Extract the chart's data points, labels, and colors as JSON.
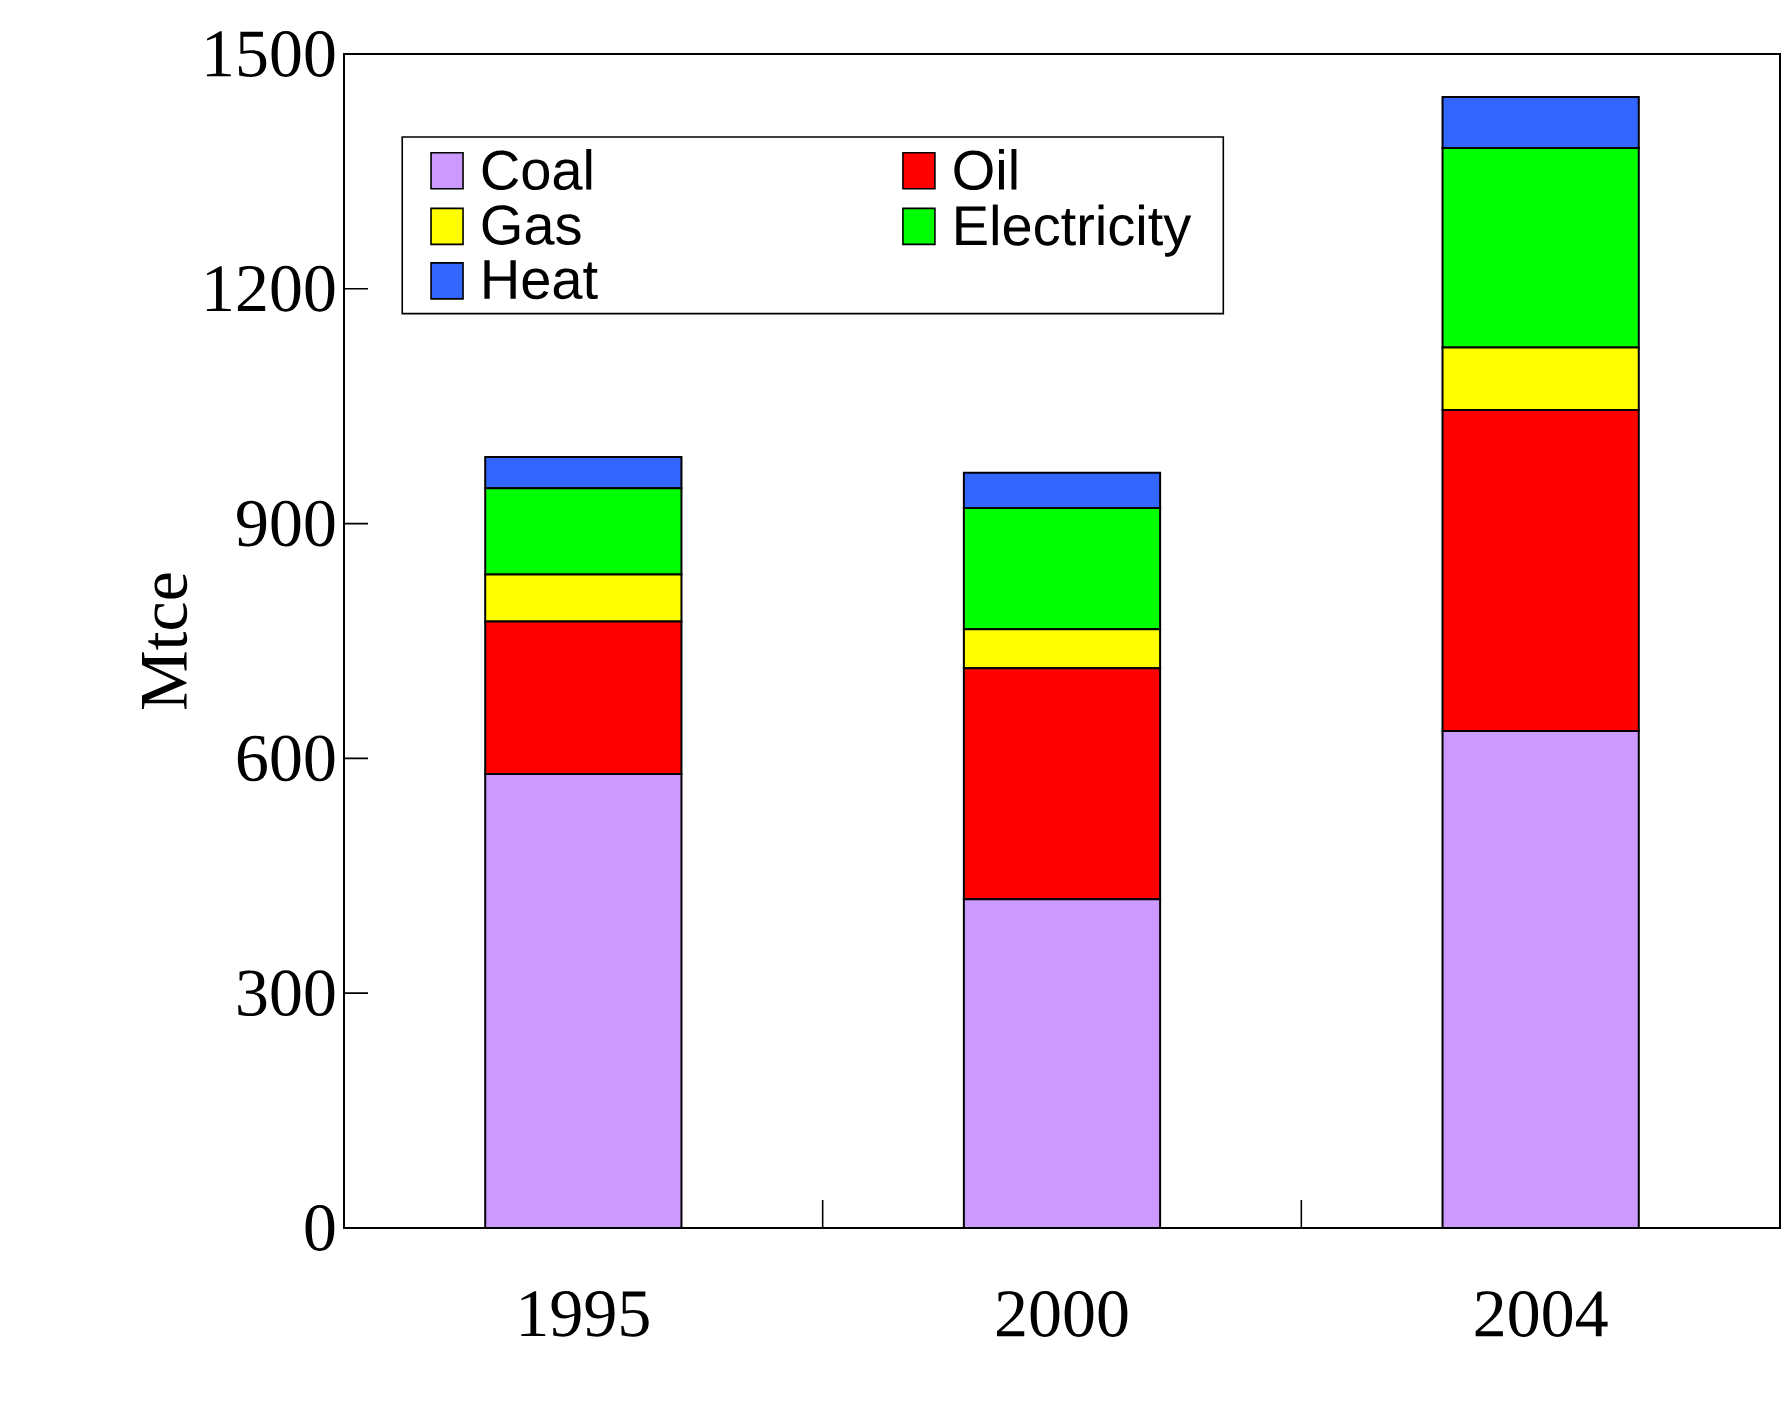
{
  "chart_data": {
    "type": "bar",
    "stacked": true,
    "ylabel": "Mtce",
    "categories": [
      "1995",
      "2000",
      "2004"
    ],
    "series": [
      {
        "name": "Coal",
        "color": "#cc99ff",
        "values": [
          580,
          420,
          635
        ]
      },
      {
        "name": "Oil",
        "color": "#ff0000",
        "values": [
          195,
          295,
          410
        ]
      },
      {
        "name": "Gas",
        "color": "#ffff00",
        "values": [
          60,
          50,
          80
        ]
      },
      {
        "name": "Electricity",
        "color": "#00ff00",
        "values": [
          110,
          155,
          255
        ]
      },
      {
        "name": "Heat",
        "color": "#3366ff",
        "values": [
          40,
          45,
          65
        ]
      }
    ],
    "ylim": [
      0,
      1500
    ],
    "yticks": [
      0,
      300,
      600,
      900,
      1200,
      1500
    ],
    "grid": false,
    "legend": "top left"
  }
}
